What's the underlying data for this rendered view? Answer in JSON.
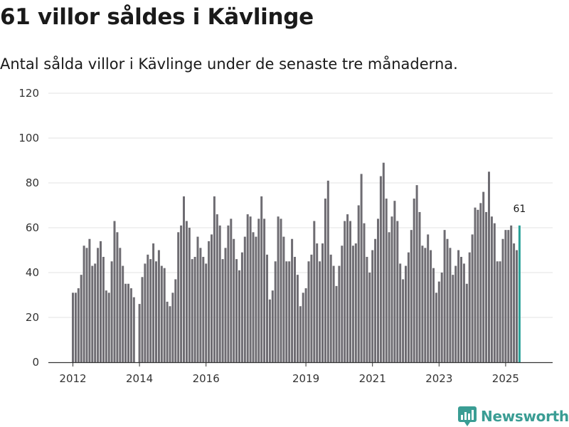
{
  "chart_data": {
    "type": "bar",
    "title": "61 villor såldes i Kävlinge",
    "subtitle": "Antal sålda villor i Kävlinge under de senaste tre månaderna.",
    "xlabel": "",
    "ylabel": "",
    "ylim": [
      0,
      120
    ],
    "yticks": [
      0,
      20,
      40,
      60,
      80,
      100,
      120
    ],
    "xtick_labels": [
      {
        "label": "2012",
        "index": 0
      },
      {
        "label": "2014",
        "index": 24
      },
      {
        "label": "2016",
        "index": 48
      },
      {
        "label": "2019",
        "index": 84
      },
      {
        "label": "2021",
        "index": 108
      },
      {
        "label": "2023",
        "index": 132
      },
      {
        "label": "2025",
        "index": 156
      }
    ],
    "values": [
      31,
      31,
      33,
      39,
      52,
      51,
      55,
      43,
      44,
      51,
      54,
      47,
      32,
      31,
      45,
      63,
      58,
      51,
      43,
      35,
      35,
      33,
      29,
      null,
      26,
      38,
      44,
      48,
      46,
      53,
      45,
      50,
      43,
      42,
      27,
      25,
      31,
      37,
      58,
      61,
      74,
      63,
      60,
      46,
      47,
      56,
      51,
      47,
      44,
      54,
      57,
      74,
      66,
      61,
      46,
      51,
      61,
      64,
      55,
      46,
      41,
      49,
      56,
      66,
      65,
      58,
      56,
      64,
      74,
      64,
      48,
      28,
      32,
      45,
      65,
      64,
      56,
      45,
      45,
      55,
      47,
      39,
      25,
      31,
      33,
      45,
      48,
      63,
      53,
      45,
      53,
      73,
      81,
      48,
      43,
      34,
      43,
      52,
      63,
      66,
      63,
      52,
      53,
      70,
      84,
      62,
      47,
      40,
      50,
      55,
      64,
      83,
      89,
      73,
      58,
      65,
      72,
      63,
      44,
      37,
      43,
      49,
      59,
      73,
      79,
      67,
      52,
      51,
      57,
      50,
      42,
      31,
      36,
      40,
      59,
      55,
      51,
      39,
      43,
      50,
      47,
      44,
      35,
      49,
      57,
      69,
      68,
      71,
      76,
      67,
      85,
      65,
      62,
      45,
      45,
      55,
      59,
      59,
      61,
      53,
      50,
      61
    ],
    "highlight_index": 161,
    "highlight_label": "61",
    "colors": {
      "bar": "#6e6c72",
      "highlight": "#2aa198",
      "grid": "#e3e3e3",
      "axis": "#333333",
      "brand": "#3a9d94"
    },
    "grid": true
  },
  "brand": {
    "name": "Newsworthy"
  }
}
